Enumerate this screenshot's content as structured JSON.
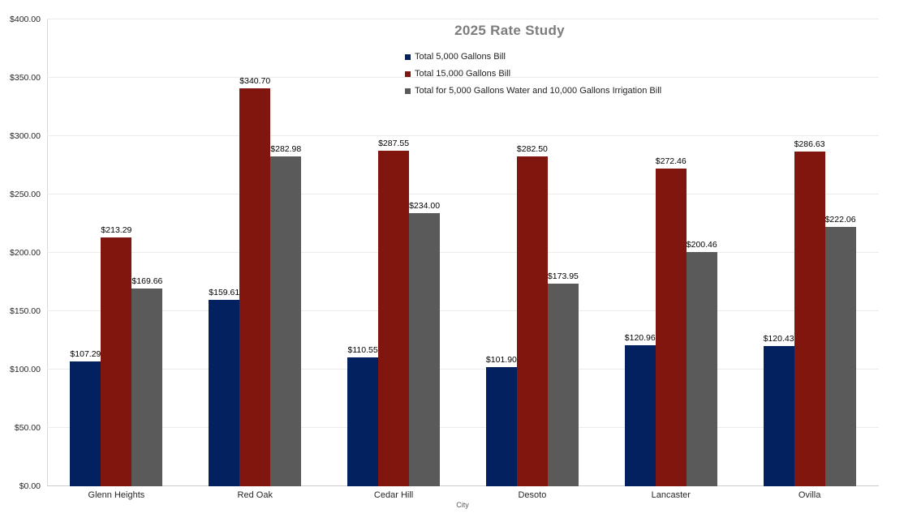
{
  "chart_data": {
    "type": "bar",
    "title": "2025 Rate Study",
    "xlabel": "City",
    "ylabel": "",
    "categories": [
      "Glenn Heights",
      "Red Oak",
      "Cedar Hill",
      "Desoto",
      "Lancaster",
      "Ovilla"
    ],
    "series": [
      {
        "name": "Total 5,000 Gallons Bill",
        "color": "#03215f",
        "values": [
          107.29,
          159.61,
          110.55,
          101.9,
          120.96,
          120.43
        ]
      },
      {
        "name": "Total 15,000 Gallons Bill",
        "color": "#81160e",
        "values": [
          213.29,
          340.7,
          287.55,
          282.5,
          272.46,
          286.63
        ]
      },
      {
        "name": "Total for 5,000 Gallons Water and 10,000 Gallons Irrigation Bill",
        "color": "#5a5a5a",
        "values": [
          169.66,
          282.98,
          234.0,
          173.95,
          200.46,
          222.06
        ]
      }
    ],
    "y_ticks": [
      "$0.00",
      "$50.00",
      "$100.00",
      "$150.00",
      "$200.00",
      "$250.00",
      "$300.00",
      "$350.00",
      "$400.00"
    ],
    "ylim": [
      0,
      400
    ],
    "grid": true,
    "data_labels": true,
    "data_label_prefix": "$",
    "legend_position": "top",
    "colors": {
      "title": "#7c7c7c",
      "gridline": "#ebebeb",
      "axis_line": "#cccccc",
      "tick_text": "#262626",
      "data_label_text": "#000000",
      "background": "#ffffff"
    }
  }
}
